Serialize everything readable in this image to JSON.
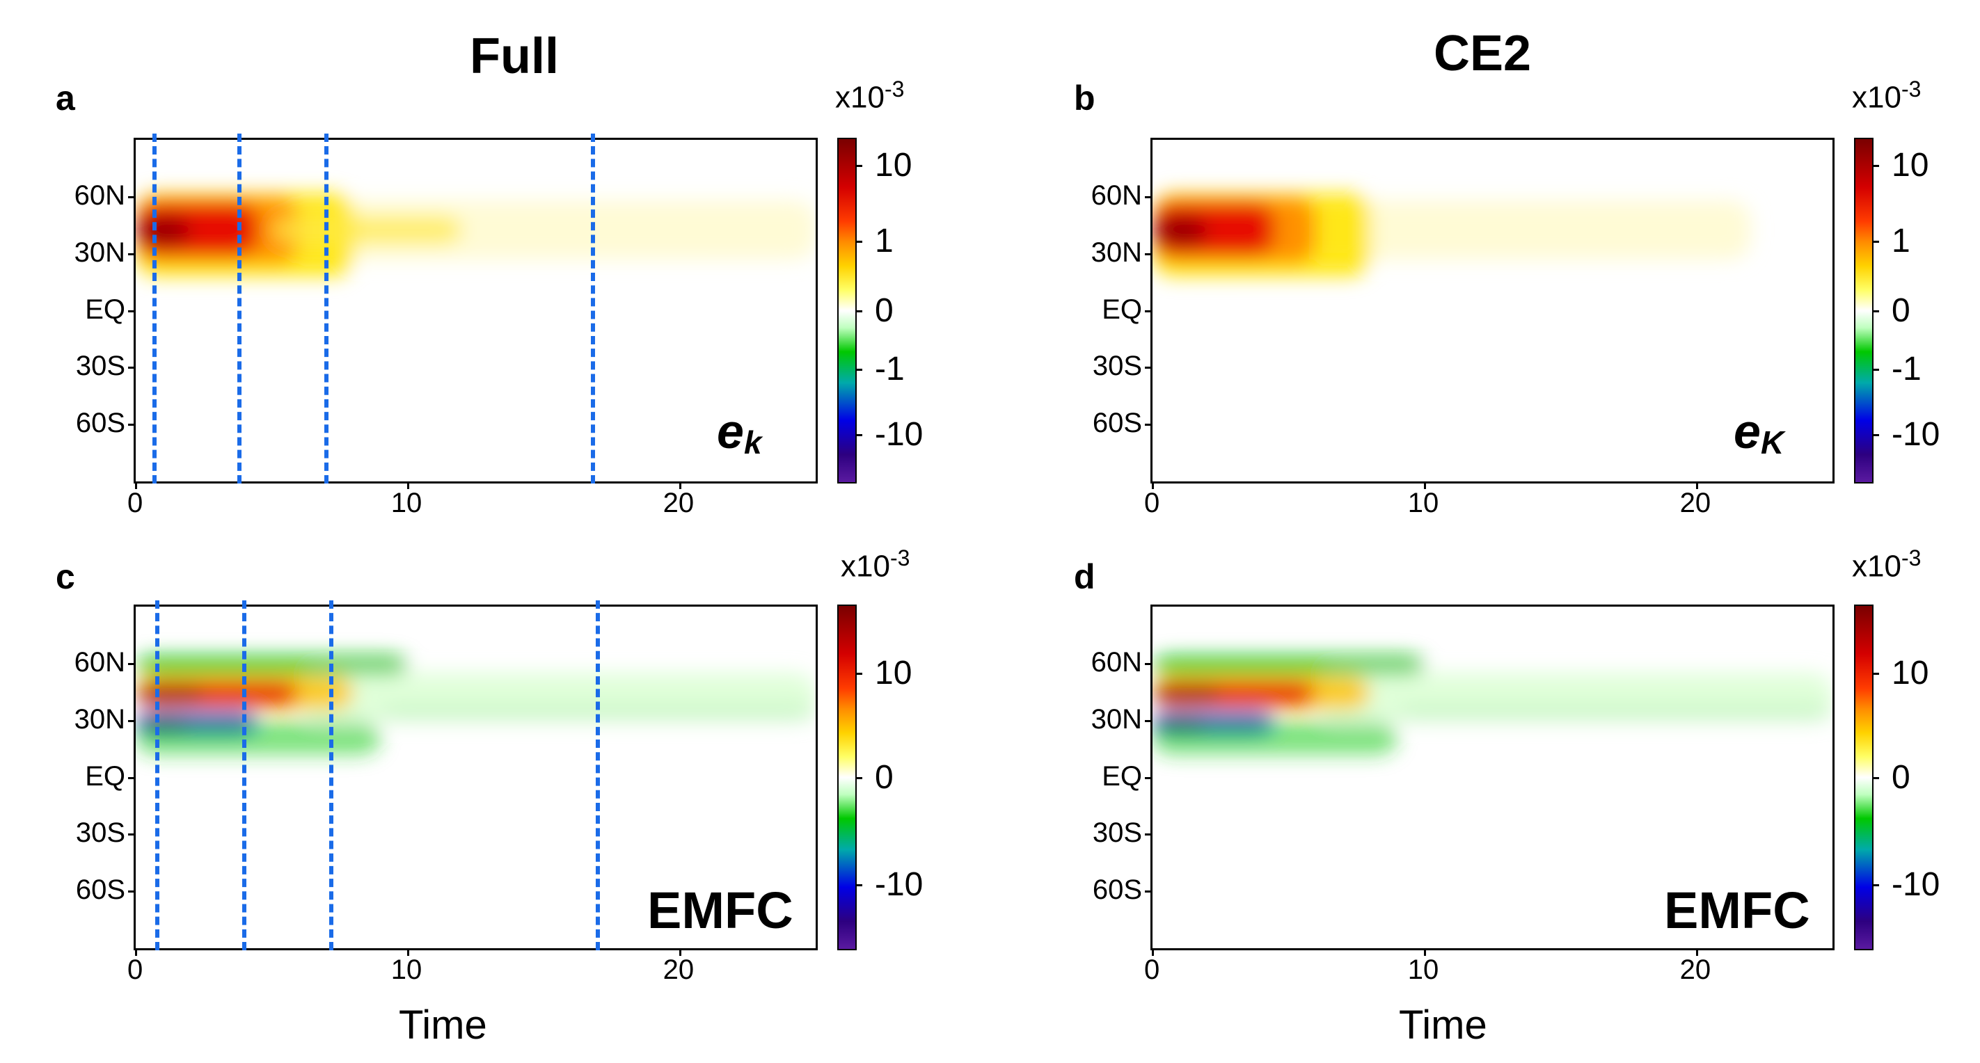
{
  "titles": {
    "left": "Full",
    "right": "CE2"
  },
  "common": {
    "y_ticks": [
      "60N",
      "30N",
      "EQ",
      "30S",
      "60S"
    ],
    "x_ticks": [
      "0",
      "10",
      "20"
    ],
    "xlabel": "Time",
    "colorbar_exponent": "x10-3",
    "exp_base": "x10",
    "exp_power": "-3"
  },
  "panels": [
    {
      "letter": "a",
      "annotation_main": "e",
      "annotation_sub": "k",
      "colorbar_ticks": [
        "10",
        "1",
        "0",
        "-1",
        "-10"
      ],
      "dashed_times": [
        0.7,
        3.8,
        7.0,
        16.8
      ]
    },
    {
      "letter": "b",
      "annotation_main": "e",
      "annotation_sub": "K",
      "colorbar_ticks": [
        "10",
        "1",
        "0",
        "-1",
        "-10"
      ],
      "dashed_times": []
    },
    {
      "letter": "c",
      "annotation": "EMFC",
      "colorbar_ticks": [
        "10",
        "0",
        "-10"
      ],
      "dashed_times": [
        0.8,
        4.0,
        7.2,
        17.0
      ]
    },
    {
      "letter": "d",
      "annotation": "EMFC",
      "colorbar_ticks": [
        "10",
        "0",
        "-10"
      ],
      "dashed_times": []
    }
  ],
  "chart_data": [
    {
      "type": "heatmap",
      "panel": "a",
      "title": "Full",
      "variable": "e_k",
      "xlabel": "Time",
      "xlim": [
        0,
        25
      ],
      "ylim": [
        "90S",
        "90N"
      ],
      "colorbar": {
        "scale_exponent": "x10-3",
        "ticks": [
          10,
          1,
          0,
          -1,
          -10
        ]
      },
      "features": [
        {
          "region": "strong positive (red)",
          "lat_range": [
            "~25N",
            "~60N"
          ],
          "time_range": [
            0,
            5
          ]
        },
        {
          "region": "weak positive (yellow)",
          "lat_range": [
            "~25N",
            "~55N"
          ],
          "time_range": [
            5,
            25
          ]
        }
      ],
      "vertical_dashed_lines": [
        0.7,
        3.8,
        7.0,
        16.8
      ]
    },
    {
      "type": "heatmap",
      "panel": "b",
      "title": "CE2",
      "variable": "e_K",
      "xlabel": "Time",
      "xlim": [
        0,
        25
      ],
      "ylim": [
        "90S",
        "90N"
      ],
      "colorbar": {
        "scale_exponent": "x10-3",
        "ticks": [
          10,
          1,
          0,
          -1,
          -10
        ]
      },
      "features": [
        {
          "region": "strong positive (red)",
          "lat_range": [
            "~20N",
            "~60N"
          ],
          "time_range": [
            0,
            5
          ]
        },
        {
          "region": "weak positive (yellow)",
          "lat_range": [
            "~25N",
            "~55N"
          ],
          "time_range": [
            5,
            22
          ]
        }
      ]
    },
    {
      "type": "heatmap",
      "panel": "c",
      "title": "Full",
      "variable": "EMFC",
      "xlabel": "Time",
      "xlim": [
        0,
        25
      ],
      "ylim": [
        "90S",
        "90N"
      ],
      "colorbar": {
        "scale_exponent": "x10-3",
        "ticks": [
          10,
          0,
          -10
        ]
      },
      "features": [
        {
          "region": "negative (green)",
          "lat_range": [
            "~55N",
            "~65N"
          ],
          "time_range": [
            0,
            10
          ]
        },
        {
          "region": "positive (red)",
          "lat_range": [
            "~38N",
            "~52N"
          ],
          "time_range": [
            0,
            7
          ]
        },
        {
          "region": "negative (blue)",
          "lat_range": [
            "~20N",
            "~35N"
          ],
          "time_range": [
            0,
            4
          ]
        }
      ],
      "vertical_dashed_lines": [
        0.8,
        4.0,
        7.2,
        17.0
      ]
    },
    {
      "type": "heatmap",
      "panel": "d",
      "title": "CE2",
      "variable": "EMFC",
      "xlabel": "Time",
      "xlim": [
        0,
        25
      ],
      "ylim": [
        "90S",
        "90N"
      ],
      "colorbar": {
        "scale_exponent": "x10-3",
        "ticks": [
          10,
          0,
          -10
        ]
      },
      "features": [
        {
          "region": "negative (green/blue)",
          "lat_range": [
            "~55N",
            "~65N"
          ],
          "time_range": [
            0,
            10
          ]
        },
        {
          "region": "positive (red)",
          "lat_range": [
            "~38N",
            "~52N"
          ],
          "time_range": [
            0,
            7
          ]
        },
        {
          "region": "negative (blue)",
          "lat_range": [
            "~20N",
            "~35N"
          ],
          "time_range": [
            0,
            5
          ]
        }
      ]
    }
  ]
}
